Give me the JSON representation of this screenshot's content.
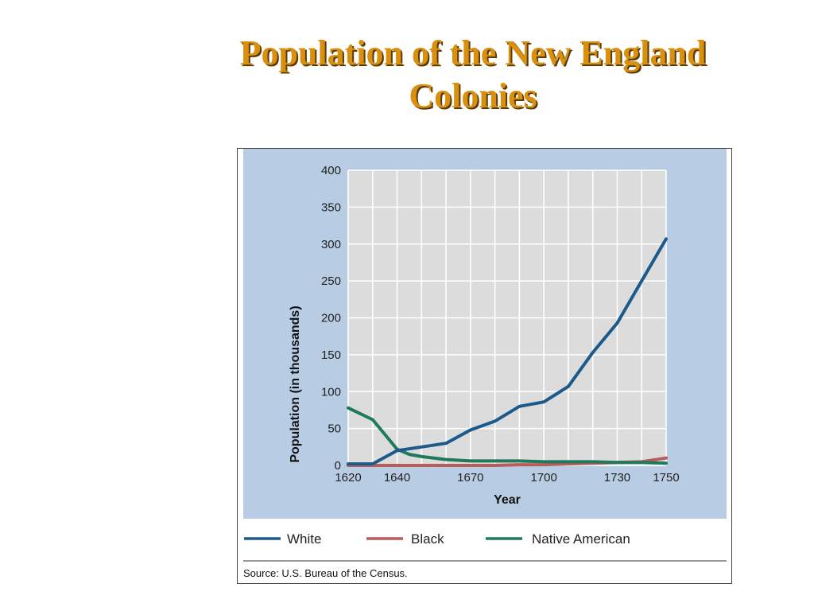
{
  "slide": {
    "title_line1": "Population of the New England",
    "title_line2": "Colonies",
    "title_color": "#d9900e"
  },
  "chart_data": {
    "type": "line",
    "xlabel": "Year",
    "ylabel": "Population (in thousands)",
    "xlim": [
      1620,
      1750
    ],
    "ylim": [
      0,
      400
    ],
    "x_ticks": [
      1620,
      1640,
      1670,
      1700,
      1730,
      1750
    ],
    "y_ticks": [
      0,
      50,
      100,
      150,
      200,
      250,
      300,
      350,
      400
    ],
    "grid": true,
    "legend_position": "bottom",
    "source": "Source: U.S. Bureau of the Census.",
    "colors": {
      "panel_background": "#b8cce4",
      "plot_background": "#dcdcdc",
      "grid": "#ffffff"
    },
    "series": [
      {
        "name": "White",
        "color": "#1c5a8c",
        "x": [
          1620,
          1630,
          1640,
          1650,
          1660,
          1670,
          1680,
          1690,
          1700,
          1710,
          1720,
          1730,
          1740,
          1750
        ],
        "values": [
          2,
          2,
          20,
          25,
          30,
          48,
          60,
          80,
          86,
          107,
          153,
          193,
          250,
          307
        ]
      },
      {
        "name": "Black",
        "color": "#b85c5c",
        "x": [
          1620,
          1630,
          1640,
          1650,
          1660,
          1670,
          1680,
          1690,
          1700,
          1710,
          1720,
          1730,
          1740,
          1750
        ],
        "values": [
          0,
          0,
          0,
          0,
          0,
          0,
          0,
          1,
          1,
          2,
          3,
          4,
          5,
          10
        ]
      },
      {
        "name": "Native American",
        "color": "#1e7a5a",
        "x": [
          1620,
          1630,
          1640,
          1645,
          1650,
          1660,
          1670,
          1680,
          1690,
          1700,
          1710,
          1720,
          1730,
          1740,
          1750
        ],
        "values": [
          78,
          62,
          22,
          15,
          12,
          8,
          6,
          6,
          6,
          5,
          5,
          5,
          4,
          4,
          3
        ]
      }
    ]
  }
}
